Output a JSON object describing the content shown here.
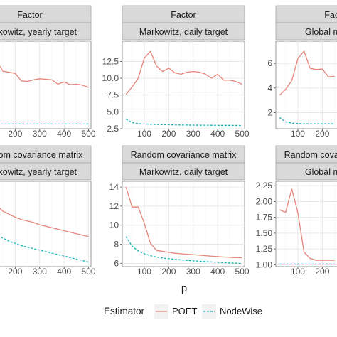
{
  "chart_data": {
    "type": "line",
    "xlabel": "p",
    "legend": {
      "title": "Estimator",
      "position": "bottom",
      "entries": [
        {
          "name": "POET",
          "color": "#e7857a",
          "dash": "solid"
        },
        {
          "name": "NodeWise",
          "color": "#1fb5b8",
          "dash": "dashed"
        }
      ]
    },
    "facets": [
      {
        "row_label": "Factor",
        "col_label": "Markowitz, yearly target",
        "col": 0,
        "row": 0,
        "xlim": [
          10,
          510
        ],
        "xticks": [
          200,
          300,
          400,
          500
        ],
        "ylim": null,
        "yticks": [],
        "series": [
          {
            "name": "POET",
            "x": [
              25,
              50,
              75,
              100,
              125,
              150,
              175,
              200,
              225,
              250,
              275,
              300,
              325,
              350,
              375,
              400,
              425,
              450,
              475,
              500
            ],
            "y": [
              15.5,
              16,
              14,
              13.5,
              13.1,
              11.3,
              11.1,
              10.9,
              9.5,
              9.4,
              9.7,
              9.9,
              9.8,
              9.7,
              8.9,
              9.3,
              8.8,
              8.9,
              8.7,
              8.3
            ]
          },
          {
            "name": "NodeWise",
            "x": [
              25,
              50,
              75,
              100,
              125,
              150,
              175,
              200,
              225,
              250,
              275,
              300,
              325,
              350,
              375,
              400,
              425,
              450,
              475,
              500
            ],
            "y": [
              1.5,
              1.5,
              1.5,
              1.5,
              1.5,
              1.5,
              1.5,
              1.5,
              1.5,
              1.5,
              1.5,
              1.5,
              1.5,
              1.5,
              1.5,
              1.5,
              1.5,
              1.5,
              1.5,
              1.5
            ]
          }
        ]
      },
      {
        "row_label": "Factor",
        "col_label": "Markowitz, daily target",
        "col": 1,
        "row": 0,
        "xlim": [
          10,
          510
        ],
        "xticks": [
          100,
          200,
          300,
          400,
          500
        ],
        "ylim": [
          2.5,
          15.5
        ],
        "yticks": [
          2.5,
          5.0,
          7.5,
          10.0,
          12.5
        ],
        "ytick_labels": [
          "2.5",
          "5.0",
          "7.5",
          "10.0",
          "12.5"
        ],
        "series": [
          {
            "name": "POET",
            "x": [
              25,
              50,
              75,
              100,
              125,
              150,
              175,
              200,
              225,
              250,
              275,
              300,
              325,
              350,
              375,
              400,
              425,
              450,
              475,
              500
            ],
            "y": [
              7.6,
              8.7,
              10.0,
              13.0,
              14.0,
              11.8,
              11.0,
              11.5,
              10.8,
              10.6,
              10.9,
              11.0,
              10.9,
              10.6,
              10.0,
              10.6,
              9.7,
              9.7,
              9.5,
              9.1
            ]
          },
          {
            "name": "NodeWise",
            "x": [
              25,
              50,
              75,
              100,
              125,
              150,
              175,
              200,
              225,
              250,
              275,
              300,
              325,
              350,
              375,
              400,
              425,
              450,
              475,
              500
            ],
            "y": [
              3.9,
              3.4,
              3.25,
              3.2,
              3.15,
              3.12,
              3.1,
              3.08,
              3.06,
              3.05,
              3.04,
              3.03,
              3.02,
              3.02,
              3.01,
              3.0,
              3.0,
              3.0,
              2.99,
              2.98
            ]
          }
        ]
      },
      {
        "row_label": "Factor",
        "col_label": "Global minimum",
        "col": 2,
        "row": 0,
        "xlim": [
          10,
          510
        ],
        "xticks": [
          100,
          200
        ],
        "ylim": [
          0.7,
          7.8
        ],
        "yticks": [
          2,
          4,
          6
        ],
        "ytick_labels": [
          "2",
          "4",
          "6"
        ],
        "series": [
          {
            "name": "POET",
            "x": [
              25,
              50,
              75,
              100,
              125,
              150,
              175,
              200,
              225,
              250
            ],
            "y": [
              3.4,
              3.9,
              4.6,
              6.4,
              7.0,
              5.6,
              5.5,
              5.55,
              4.9,
              4.95
            ]
          },
          {
            "name": "NodeWise",
            "x": [
              25,
              50,
              75,
              100,
              125,
              150,
              175,
              200,
              225,
              250
            ],
            "y": [
              1.6,
              1.25,
              1.15,
              1.12,
              1.1,
              1.1,
              1.1,
              1.1,
              1.1,
              1.1
            ]
          }
        ]
      },
      {
        "row_label": "Random covariance matrix",
        "col_label": "Markowitz, yearly target",
        "col": 0,
        "row": 1,
        "xlim": [
          10,
          510
        ],
        "xticks": [
          200,
          300,
          400,
          500
        ],
        "ylim": null,
        "yticks": [],
        "series": [
          {
            "name": "POET",
            "x": [
              25,
              50,
              75,
              100,
              125,
              150,
              175,
              200,
              225,
              250,
              275,
              300,
              325,
              350,
              375,
              400,
              425,
              450,
              475,
              500
            ],
            "y": [
              6.3,
              5.9,
              5.6,
              5.3,
              5.0,
              4.6,
              4.4,
              4.2,
              4.05,
              3.95,
              3.85,
              3.7,
              3.6,
              3.5,
              3.4,
              3.3,
              3.2,
              3.1,
              3.0,
              2.9
            ]
          },
          {
            "name": "NodeWise",
            "x": [
              25,
              50,
              75,
              100,
              125,
              150,
              175,
              200,
              225,
              250,
              275,
              300,
              325,
              350,
              375,
              400,
              425,
              450,
              475,
              500
            ],
            "y": [
              4.6,
              4.0,
              3.6,
              3.3,
              3.05,
              2.8,
              2.6,
              2.45,
              2.3,
              2.2,
              2.1,
              2.0,
              1.9,
              1.8,
              1.7,
              1.6,
              1.5,
              1.4,
              1.3,
              1.2
            ]
          }
        ]
      },
      {
        "row_label": "Random covariance matrix",
        "col_label": "Markowitz, daily target",
        "col": 1,
        "row": 1,
        "xlim": [
          10,
          510
        ],
        "xticks": [
          100,
          200,
          300,
          400,
          500
        ],
        "ylim": [
          5.65,
          14.6
        ],
        "yticks": [
          6,
          8,
          10,
          12,
          14
        ],
        "ytick_labels": [
          "6",
          "8",
          "10",
          "12",
          "14"
        ],
        "series": [
          {
            "name": "POET",
            "x": [
              25,
              50,
              75,
              100,
              125,
              150,
              175,
              200,
              225,
              250,
              275,
              300,
              325,
              350,
              375,
              400,
              425,
              450,
              475,
              500
            ],
            "y": [
              14.0,
              11.9,
              11.9,
              10.2,
              8.1,
              7.35,
              7.25,
              7.15,
              7.05,
              7.0,
              6.95,
              6.9,
              6.85,
              6.8,
              6.75,
              6.7,
              6.66,
              6.62,
              6.6,
              6.58
            ]
          },
          {
            "name": "NodeWise",
            "x": [
              25,
              50,
              75,
              100,
              125,
              150,
              175,
              200,
              225,
              250,
              275,
              300,
              325,
              350,
              375,
              400,
              425,
              450,
              475,
              500
            ],
            "y": [
              8.8,
              7.8,
              7.3,
              7.0,
              6.8,
              6.65,
              6.55,
              6.48,
              6.42,
              6.36,
              6.3,
              6.26,
              6.22,
              6.18,
              6.14,
              6.1,
              6.07,
              6.04,
              6.01,
              5.98
            ]
          }
        ]
      },
      {
        "row_label": "Random covariance matrix",
        "col_label": "Global minimum",
        "col": 2,
        "row": 1,
        "xlim": [
          10,
          510
        ],
        "xticks": [
          100,
          200
        ],
        "ylim": [
          0.97,
          2.32
        ],
        "yticks": [
          1.0,
          1.25,
          1.5,
          1.75,
          2.0,
          2.25
        ],
        "ytick_labels": [
          "1.00",
          "1.25",
          "1.50",
          "1.75",
          "2.00",
          "2.25"
        ],
        "series": [
          {
            "name": "POET",
            "x": [
              25,
              50,
              75,
              100,
              125,
              150,
              175,
              200,
              225,
              250
            ],
            "y": [
              1.87,
              1.83,
              2.2,
              1.82,
              1.2,
              1.1,
              1.07,
              1.07,
              1.07,
              1.07
            ]
          },
          {
            "name": "NodeWise",
            "x": [
              25,
              50,
              75,
              100,
              125,
              150,
              175,
              200,
              225,
              250
            ],
            "y": [
              1.01,
              1.01,
              1.01,
              1.01,
              1.01,
              1.01,
              1.01,
              1.01,
              1.01,
              1.01
            ]
          }
        ]
      }
    ]
  }
}
